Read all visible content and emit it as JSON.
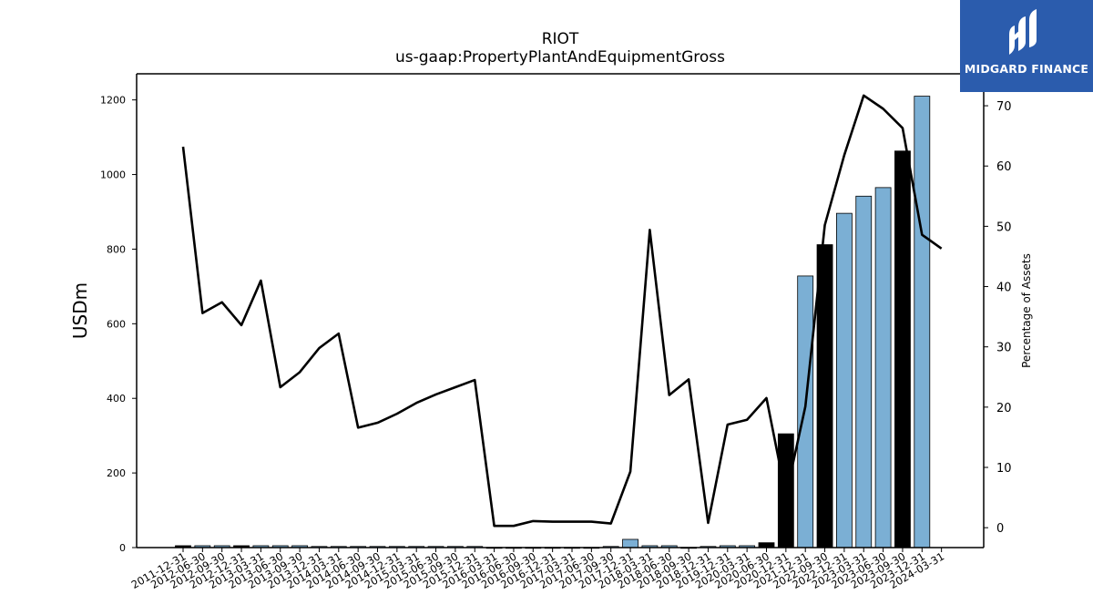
{
  "chart_data": {
    "type": "bar",
    "title": "RIOT",
    "subtitle": "us-gaap:PropertyPlantAndEquipmentGross",
    "ylabel": "USDm",
    "y2label": "Percentage of Assets",
    "ylim": [
      0,
      1270
    ],
    "y2lim": [
      -3.3,
      75.3
    ],
    "yticks": [
      0,
      200,
      400,
      600,
      800,
      1000,
      1200
    ],
    "y2ticks": [
      0,
      10,
      20,
      30,
      40,
      50,
      60,
      70
    ],
    "categories": [
      "2011-12-31",
      "2012-06-30",
      "2012-09-30",
      "2012-12-31",
      "2013-03-31",
      "2013-06-30",
      "2013-09-30",
      "2013-12-31",
      "2014-03-31",
      "2014-06-30",
      "2014-09-30",
      "2014-12-31",
      "2015-03-31",
      "2015-06-30",
      "2015-09-30",
      "2015-12-31",
      "2016-03-31",
      "2016-06-30",
      "2016-09-30",
      "2016-12-31",
      "2017-03-31",
      "2017-06-30",
      "2017-09-30",
      "2017-12-31",
      "2018-03-31",
      "2018-06-30",
      "2018-09-30",
      "2018-12-31",
      "2019-12-31",
      "2020-03-31",
      "2020-06-30",
      "2020-12-31",
      "2021-12-31",
      "2022-09-30",
      "2022-12-31",
      "2023-03-31",
      "2023-06-30",
      "2023-09-30",
      "2023-12-31",
      "2024-03-31"
    ],
    "series": [
      {
        "kind": "bar",
        "values": [
          5,
          5,
          5,
          5,
          5,
          5,
          5,
          3,
          3,
          3,
          3,
          3,
          3,
          3,
          3,
          3,
          0.5,
          0.5,
          0.5,
          0.5,
          0.5,
          0.5,
          3,
          22,
          5,
          5,
          0.5,
          3,
          5,
          5,
          13,
          305,
          728,
          812,
          896,
          942,
          965,
          1063,
          1210,
          0
        ],
        "highlight": [
          true,
          false,
          false,
          true,
          false,
          false,
          false,
          false,
          false,
          false,
          false,
          false,
          false,
          false,
          false,
          false,
          false,
          false,
          false,
          false,
          false,
          false,
          false,
          false,
          false,
          false,
          false,
          false,
          false,
          false,
          true,
          true,
          false,
          true,
          false,
          false,
          false,
          true,
          false,
          false
        ],
        "color": "#7bafd4",
        "highlight_color": "#000000"
      },
      {
        "kind": "line",
        "axis": "right",
        "values": [
          63.2,
          35.6,
          37.4,
          33.6,
          41,
          23.3,
          25.8,
          29.8,
          32.2,
          16.6,
          17.4,
          18.9,
          20.7,
          22.1,
          23.3,
          24.5,
          0.3,
          0.3,
          1.1,
          1,
          1,
          1,
          0.7,
          9.3,
          49.4,
          22,
          24.6,
          0.8,
          17.1,
          17.9,
          21.5,
          5.3,
          20.1,
          50.2,
          61.8,
          71.7,
          69.5,
          66.3,
          48.6,
          46.3
        ],
        "color": "#000000"
      }
    ],
    "grid": false
  },
  "logo": {
    "text": "MIDGARD FINANCE",
    "color": "#2b5cad"
  }
}
